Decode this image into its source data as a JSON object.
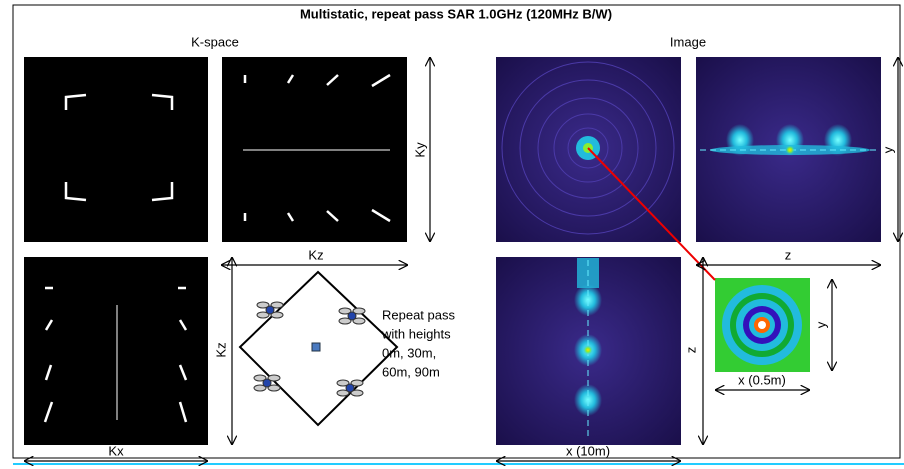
{
  "title": "Multistatic, repeat pass SAR 1.0GHz (120MHz B/W)",
  "kspace_label": "K-space",
  "image_label": "Image",
  "axes": {
    "ky": "Ky",
    "kz_top": "Kz",
    "kz_side": "Kz",
    "kx": "Kx",
    "y_image": "y",
    "z_image": "z",
    "y_inset": "y",
    "x_inset": "x (0.5m)",
    "z_side": "z",
    "x_image": "x (10m)"
  },
  "repeat_pass": [
    "Repeat pass",
    "with heights",
    "0m, 30m,",
    "60m, 90m"
  ]
}
